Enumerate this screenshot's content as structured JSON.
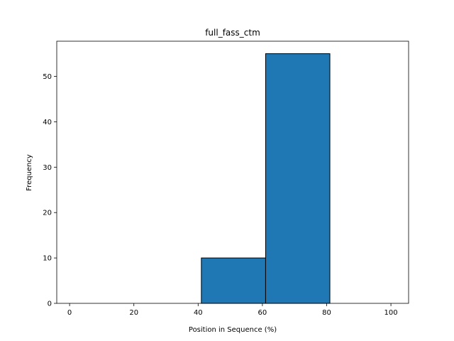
{
  "chart_data": {
    "type": "bar",
    "title": "full_fass_ctm",
    "xlabel": "Position in Sequence (%)",
    "ylabel": "Frequency",
    "xlim": [
      -4,
      105.5
    ],
    "ylim": [
      0,
      57.75
    ],
    "xticks": [
      0,
      20,
      40,
      60,
      80,
      100
    ],
    "yticks": [
      0,
      10,
      20,
      30,
      40,
      50
    ],
    "bins": [
      {
        "x0": 1,
        "x1": 21,
        "value": 0
      },
      {
        "x0": 21,
        "x1": 41,
        "value": 0
      },
      {
        "x0": 41,
        "x1": 61,
        "value": 10
      },
      {
        "x0": 61,
        "x1": 81,
        "value": 55
      },
      {
        "x0": 81,
        "x1": 101,
        "value": 0
      }
    ],
    "colors": {
      "bar": "#1f77b4",
      "edge": "#000000"
    },
    "grid": false
  }
}
